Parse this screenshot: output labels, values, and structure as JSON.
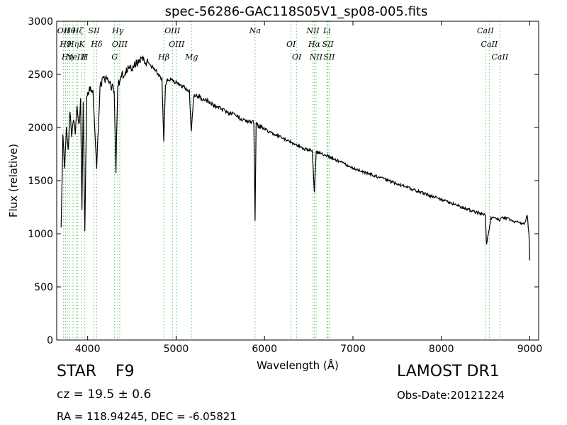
{
  "chart_data": {
    "type": "line",
    "title": "spec-56286-GAC118S05V1_sp08-005.fits",
    "xlabel": "Wavelength (Å)",
    "ylabel": "Flux (relative)",
    "xlim": [
      3650,
      9100
    ],
    "ylim": [
      0,
      3000
    ],
    "xticks": [
      4000,
      5000,
      6000,
      7000,
      8000,
      9000
    ],
    "yticks": [
      0,
      500,
      1000,
      1500,
      2000,
      2500,
      3000
    ],
    "grid": false,
    "series": [
      {
        "color": "#000000",
        "x": [
          3700,
          3720,
          3740,
          3760,
          3780,
          3800,
          3820,
          3840,
          3860,
          3880,
          3900,
          3920,
          3935,
          3950,
          3968,
          3990,
          4020,
          4060,
          4102,
          4140,
          4180,
          4220,
          4260,
          4300,
          4320,
          4340,
          4370,
          4400,
          4450,
          4500,
          4550,
          4600,
          4650,
          4700,
          4750,
          4800,
          4840,
          4861,
          4880,
          4900,
          4950,
          5000,
          5050,
          5100,
          5150,
          5172,
          5200,
          5250,
          5300,
          5350,
          5400,
          5450,
          5500,
          5550,
          5600,
          5650,
          5700,
          5750,
          5800,
          5850,
          5880,
          5893,
          5905,
          5950,
          6000,
          6050,
          6100,
          6150,
          6200,
          6250,
          6300,
          6350,
          6400,
          6450,
          6500,
          6540,
          6563,
          6585,
          6620,
          6700,
          6800,
          6900,
          7000,
          7100,
          7200,
          7300,
          7400,
          7500,
          7600,
          7700,
          7800,
          7900,
          8000,
          8100,
          8200,
          8300,
          8400,
          8450,
          8498,
          8510,
          8542,
          8560,
          8600,
          8662,
          8700,
          8750,
          8800,
          8850,
          8900,
          8950,
          8970,
          8990,
          9000
        ],
        "y": [
          1100,
          1900,
          1650,
          2000,
          1800,
          2150,
          1900,
          2100,
          1950,
          2200,
          2000,
          2250,
          1250,
          2200,
          1000,
          2300,
          2350,
          2350,
          1600,
          2400,
          2450,
          2450,
          2400,
          2350,
          1600,
          2400,
          2450,
          2500,
          2550,
          2550,
          2600,
          2650,
          2620,
          2600,
          2560,
          2500,
          2450,
          1850,
          2400,
          2450,
          2450,
          2420,
          2400,
          2380,
          2350,
          1950,
          2300,
          2300,
          2270,
          2250,
          2220,
          2200,
          2180,
          2160,
          2140,
          2120,
          2100,
          2080,
          2060,
          2050,
          2040,
          1140,
          2030,
          2010,
          1990,
          1960,
          1940,
          1920,
          1900,
          1880,
          1860,
          1840,
          1820,
          1800,
          1790,
          1780,
          1400,
          1770,
          1760,
          1740,
          1700,
          1660,
          1620,
          1590,
          1560,
          1530,
          1500,
          1470,
          1440,
          1410,
          1380,
          1350,
          1320,
          1290,
          1260,
          1230,
          1200,
          1190,
          1180,
          900,
          1050,
          1150,
          1160,
          1130,
          1150,
          1140,
          1120,
          1110,
          1100,
          1100,
          1180,
          1000,
          750
        ]
      }
    ],
    "lines": [
      {
        "x": 3727,
        "label": "OII"
      },
      {
        "x": 3750,
        "label": "Hθ"
      },
      {
        "x": 3771,
        "label": "Hη"
      },
      {
        "x": 3798,
        "label": "Hθ"
      },
      {
        "x": 3835,
        "label": "Hη"
      },
      {
        "x": 3869,
        "label": "NeIII"
      },
      {
        "x": 3889,
        "label": "Hζ"
      },
      {
        "x": 3934,
        "label": "K"
      },
      {
        "x": 3968,
        "label": "H"
      },
      {
        "x": 4071,
        "label": "SII"
      },
      {
        "x": 4102,
        "label": "Hδ"
      },
      {
        "x": 4304,
        "label": "G"
      },
      {
        "x": 4341,
        "label": "Hγ"
      },
      {
        "x": 4363,
        "label": "OIII"
      },
      {
        "x": 4861,
        "label": "Hβ"
      },
      {
        "x": 4959,
        "label": "OIII"
      },
      {
        "x": 5007,
        "label": "OIII"
      },
      {
        "x": 5175,
        "label": "Mg"
      },
      {
        "x": 5893,
        "label": "Na"
      },
      {
        "x": 6300,
        "label": "OI"
      },
      {
        "x": 6364,
        "label": "OI"
      },
      {
        "x": 6548,
        "label": "NII"
      },
      {
        "x": 6563,
        "label": "Hα"
      },
      {
        "x": 6583,
        "label": "NII"
      },
      {
        "x": 6707,
        "label": "Li"
      },
      {
        "x": 6717,
        "label": "SII"
      },
      {
        "x": 6731,
        "label": "SII"
      },
      {
        "x": 8498,
        "label": "CaII"
      },
      {
        "x": 8542,
        "label": "CaII"
      },
      {
        "x": 8662,
        "label": "CaII"
      }
    ]
  },
  "object": {
    "class": "STAR",
    "subclass": "F9",
    "cz": "cz = 19.5  ± 0.6",
    "radec": "RA = 118.94245, DEC = -6.05821"
  },
  "survey": {
    "name": "LAMOST DR1",
    "obs_date": "Obs-Date:20121224"
  }
}
